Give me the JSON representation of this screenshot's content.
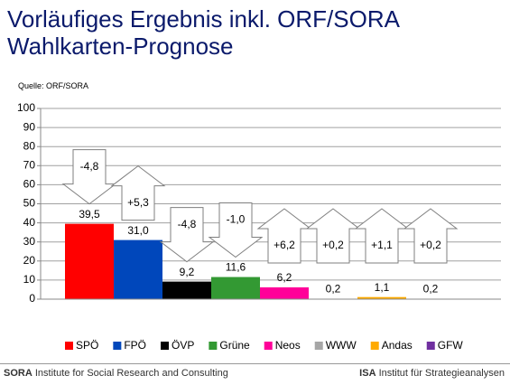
{
  "chart_data": {
    "type": "bar",
    "title": "Vorläufiges Ergebnis inkl. ORF/SORA Wahlkarten-Prognose",
    "source": "Quelle: ORF/SORA",
    "categories": [
      "SPÖ",
      "FPÖ",
      "ÖVP",
      "Grüne",
      "Neos",
      "WWW",
      "Andas",
      "GFW"
    ],
    "values": [
      39.5,
      31.0,
      9.2,
      11.6,
      6.2,
      0.2,
      1.1,
      0.2
    ],
    "value_labels": [
      "39,5",
      "31,0",
      "9,2",
      "11,6",
      "6,2",
      "0,2",
      "1,1",
      "0,2"
    ],
    "colors": [
      "#ff0000",
      "#0047bb",
      "#000000",
      "#339933",
      "#ff0099",
      "#a6a6a6",
      "#ffaa00",
      "#7030a0"
    ],
    "changes": [
      -4.8,
      5.3,
      -4.8,
      -1.0,
      6.2,
      0.2,
      1.1,
      0.2
    ],
    "change_labels": [
      "-4,8",
      "+5,3",
      "-4,8",
      "-1,0",
      "+6,2",
      "+0,2",
      "+1,1",
      "+0,2"
    ],
    "ylim": [
      0,
      100
    ],
    "yticks": [
      0,
      10,
      20,
      30,
      40,
      50,
      60,
      70,
      80,
      90,
      100
    ],
    "grid": true,
    "legend": "bottom"
  },
  "footer": {
    "left_brand": "SORA",
    "left_text": "Institute for Social Research and Consulting",
    "right_brand": "ISA",
    "right_text": "Institut für Strategieanalysen"
  }
}
